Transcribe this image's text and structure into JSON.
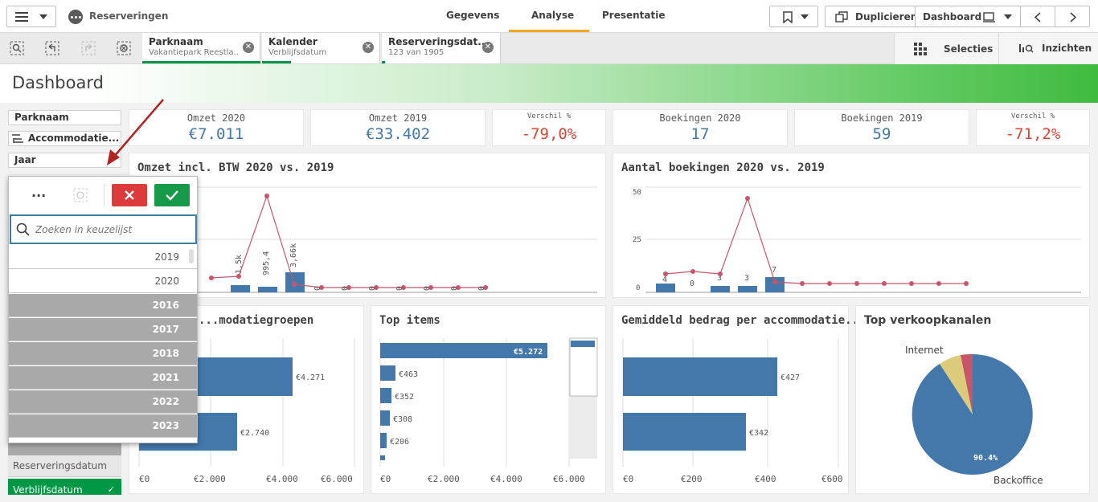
{
  "app": {
    "title": "Reserveringen"
  },
  "nav": {
    "tabs": [
      "Gegevens",
      "Analyse",
      "Presentatie"
    ]
  },
  "toolbar": {
    "duplicate_label": "Duplicieren",
    "dashboard_label": "Dashboard"
  },
  "selections": {
    "chips": [
      {
        "title": "Parknaam",
        "value": "Vakantiepark Reestla..."
      },
      {
        "title": "Kalender",
        "value": "Verblijfsdatum"
      },
      {
        "title": "Reserveringsdat...",
        "value": "123 van 1905"
      }
    ],
    "selecties_label": "Selecties",
    "inzichten_label": "Inzichten"
  },
  "sheet": {
    "title": "Dashboard"
  },
  "filters": {
    "parknaam": "Parknaam",
    "accommodatie": "Accommodatie...",
    "jaar": "Jaar"
  },
  "kpis": [
    {
      "label": "Omzet 2020",
      "value": "€7.011"
    },
    {
      "label": "Omzet 2019",
      "value": "€33.402"
    },
    {
      "label": "Verschil %",
      "value": "-79,0%"
    },
    {
      "label": "Boekingen 2020",
      "value": "17"
    },
    {
      "label": "Boekingen 2019",
      "value": "59"
    },
    {
      "label": "Verschil %",
      "value": "-71,2%"
    }
  ],
  "panels": {
    "omzet": "Omzet incl. BTW 2020 vs. 2019",
    "boekingen": "Aantal boekingen 2020 vs. 2019",
    "accom": "...modatiegroepen",
    "topitems": "Top items",
    "gemiddeld": "Gemiddeld bedrag per accommodatie...",
    "kanalen": "Top verkoopkanalen"
  },
  "listbox": {
    "search_placeholder": "Zoeken in keuzelijst",
    "items": [
      {
        "label": "2019",
        "state": "possible"
      },
      {
        "label": "2020",
        "state": "possible"
      },
      {
        "label": "2016",
        "state": "excluded"
      },
      {
        "label": "2017",
        "state": "excluded"
      },
      {
        "label": "2018",
        "state": "excluded"
      },
      {
        "label": "2021",
        "state": "excluded"
      },
      {
        "label": "2022",
        "state": "excluded"
      },
      {
        "label": "2023",
        "state": "excluded"
      }
    ]
  },
  "side_list": [
    {
      "label": "Reserveringsdatum",
      "selected": false
    },
    {
      "label": "Verblijfsdatum",
      "selected": true
    }
  ],
  "chart_data": [
    {
      "type": "bar",
      "title": "Omzet incl. BTW 2020 vs. 2019",
      "series": [
        {
          "values": [
            null,
            null,
            null,
            null,
            1500,
            995.4,
            3660
          ]
        },
        {
          "values": [
            null,
            null,
            null,
            null,
            null,
            11000,
            null,
            0,
            0,
            0,
            0,
            0,
            0,
            0
          ]
        }
      ],
      "bar_labels": [
        "1,5k",
        "995,4",
        "3,66k"
      ],
      "line_labels": [
        "0",
        "0",
        "0",
        "0",
        "0",
        "0",
        "0"
      ]
    },
    {
      "type": "bar",
      "title": "Aantal boekingen 2020 vs. 2019",
      "ylim": [
        0,
        50
      ],
      "yticks": [
        "0",
        "25",
        "50"
      ],
      "series": [
        {
          "values": [
            4,
            0,
            3,
            3,
            7
          ]
        },
        {
          "values": [
            8,
            10,
            8,
            46,
            2,
            2,
            2,
            2,
            2,
            2,
            2,
            2
          ]
        }
      ],
      "bar_labels": [
        "4",
        "0",
        "3",
        "3",
        "7"
      ]
    },
    {
      "type": "bar",
      "title": "...modatiegroepen",
      "orientation": "horizontal",
      "values": [
        4271,
        2740
      ],
      "value_labels": [
        "€4.271",
        "€2.740"
      ],
      "xticks": [
        "€0",
        "€2.000",
        "€4.000",
        "€6.000"
      ],
      "xlim": [
        0,
        6000
      ]
    },
    {
      "type": "bar",
      "title": "Top items",
      "orientation": "horizontal",
      "values": [
        5272,
        463,
        352,
        308,
        206
      ],
      "value_labels": [
        "€5.272",
        "€463",
        "€352",
        "€308",
        "€206"
      ],
      "xticks": [
        "€0",
        "€2.000",
        "€4.000",
        "€6.000"
      ],
      "xlim": [
        0,
        6000
      ]
    },
    {
      "type": "bar",
      "title": "Gemiddeld bedrag per accommodatie...",
      "orientation": "horizontal",
      "values": [
        427,
        342
      ],
      "value_labels": [
        "€427",
        "€342"
      ],
      "xticks": [
        "€0",
        "€200",
        "€400",
        "€600"
      ],
      "xlim": [
        0,
        600
      ]
    },
    {
      "type": "pie",
      "title": "Top verkoopkanalen",
      "slices": [
        {
          "label": "Backoffice",
          "value": 90.4
        },
        {
          "label": "Internet",
          "value": 6.4
        },
        {
          "label": "",
          "value": 3.2
        }
      ],
      "pct_label": "90.4%"
    }
  ],
  "colors": {
    "accent": "#009845",
    "bar": "#4477aa",
    "line": "#c8566b",
    "kpi": "#4477aa",
    "negative": "#dd4433"
  }
}
